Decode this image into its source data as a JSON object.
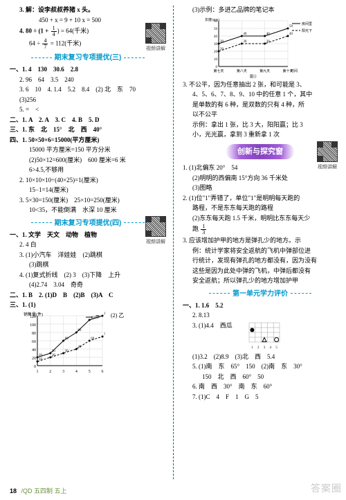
{
  "footer": {
    "page": "18",
    "label": "/QD 五四制 五上"
  },
  "watermark": "答案圈",
  "qr_label": "视频讲解",
  "colors": {
    "title": "#0099cc",
    "banner_bg": "#8a4bc2",
    "divider": "#0a6b6b",
    "chart_axis": "#000000",
    "chart_grid": "#888888",
    "series_a": "#000000",
    "series_b": "#000000",
    "footer_label": "#6b8f3a"
  },
  "left": {
    "p3": {
      "l1": "3. 解：设李叔叔养猪 x 头。",
      "l2": "450 + x = 9 + 10    x = 500",
      "l3a": "4. 80 ÷ (1 + ",
      "l3b": ") = 64(千米)",
      "frac1": {
        "n": "1",
        "d": "4"
      },
      "l4a": "64 ÷ ",
      "l4b": " = 112(千米)",
      "frac2": {
        "n": "4",
        "d": "7"
      }
    },
    "s3_title": "期末复习专项提优(三)",
    "s3": {
      "h1": "一、1. 4　130　30.6　2.8",
      "l2": "2. 96　64　3.5　240",
      "l3": "3. 6　10　4. 1.4　5.2　8.4　(2) 北　东　70",
      "l4": "(3)256",
      "l5": "5. =　<",
      "h2": "二、1. A　2. A　3. C　4. B　5. D",
      "h3": "三、1. 东　北　15°　北　西　40°",
      "h4": "四、1. 50×50×6=15000(平方厘米)",
      "l6": "15000 平方厘米=150 平方分米",
      "l7": "(2)50×12=600(厘米)　600 厘米=6 米",
      "l8": "6>4.5,不够用",
      "l9": "2. 10×10×10÷(40×25)=1(厘米)",
      "l10": "15−1=14(厘米)",
      "l11": "3. 5×30=150(厘米)　25×10=250(厘米)",
      "l12": "10<35，不能倒满　水深 10 厘米"
    },
    "s4_title": "期末复习专项提优(四)",
    "s4": {
      "h1": "一、1. 文学　天文　动物　植物",
      "l2": "2. 4 白",
      "l3": "3. (1)小汽车　洋娃娃　(2)跳棋",
      "l4": "(3)跳棋",
      "l5": "4. (1)复式折线　(2) 3　(3)下降　上升",
      "l6": "(4)2.74　3.04　奇奇",
      "h2": "二、1. B　2. (1)D　B　(2)B　(3)A　C",
      "h3": "三、1. (1)",
      "chart_legend": "(2) 乙",
      "chart": {
        "ylabel": "销售量(件)",
        "series_label": "甲",
        "x": [
          1,
          2,
          3,
          4,
          5,
          6
        ],
        "y_top": [
          20,
          30,
          60,
          80,
          110,
          120
        ],
        "y_bot": [
          10,
          20,
          30,
          40,
          60,
          70
        ],
        "ylim": [
          0,
          120
        ],
        "ytick": 20,
        "width": 120,
        "height": 90,
        "axis_color": "#000",
        "grid_color": "#bbb",
        "line_color": "#000"
      }
    }
  },
  "right": {
    "top": {
      "l1": "(3)示例：多进乙品牌的笔记本",
      "chart": {
        "ylabel": "长度(mm)",
        "legend_a": "房间里",
        "legend_b": "阳光下",
        "xlabels": [
          "第七天",
          "第八天",
          "第九天",
          "第十天"
        ],
        "xlabel_extra": "时间",
        "xlabel_extra2": "图②",
        "series_a": [
          30,
          40,
          40,
          50
        ],
        "series_b": [
          20,
          30,
          30,
          40
        ],
        "ylim": [
          0,
          60
        ],
        "ytick": 10,
        "width": 140,
        "height": 80,
        "axis_color": "#000",
        "grid_color": "#bbb"
      },
      "l2": "3. 不公平，因为任意抽出 2 张，和可能是 3、",
      "l3": "4、5、6、7、8、9、10 中的任意 1 个，其中",
      "l4": "是单数的有 6 种，是双数的只有 4 种，所",
      "l5": "以不公平",
      "l6": "示例：拿出 1 张，比 3 大，阳阳赢；比 3",
      "l7": "小，光光赢，拿到 3 重新拿 1 次"
    },
    "banner": "创新与探究窗",
    "mid": {
      "l1": "1. (1)北偏东 20°　54",
      "l2": "(2)明明的西偏南 15°方向 36 千米处",
      "l3": "(3)图略",
      "l4": "2. (1)位\"1\"弄错了，单位\"1\"是明明每天跑的",
      "l5": "路程，不是东东每天跑的路程",
      "l6": "(2)东东每天跑 1.5 千米，明明比东东每天少",
      "l7a": "跑 ",
      "frac": {
        "n": "1",
        "d": "3"
      },
      "l8": "3. 应该增加护甲的地方是弹孔少的地方。示",
      "l9": "例：统计学家将安全返航的飞机中弹部位进",
      "l10": "行统计，发现有弹孔的地方都没有，因为没有",
      "l11": "这些是因为此处中弹的飞机，中弹后都没有",
      "l12": "安全返航；所以弹孔少的地方增加护甲"
    },
    "s1_title": "第一单元学力评价",
    "s1": {
      "h1": "一、1. 1.6　5.2",
      "l2": "2. 8.13",
      "l3a": "3. (1)4.4　西瓜",
      "chart2": {
        "width": 52,
        "height": 40,
        "rows": 4,
        "cols": 5,
        "shapes": [
          {
            "type": "circle",
            "r": 2,
            "c": 1
          },
          {
            "type": "circle_open",
            "r": 4,
            "c": 5
          },
          {
            "type": "triangle",
            "r": 4,
            "c": 3
          }
        ]
      },
      "l4": "(1)3.2　(2)8.9　(3)北　西　5.4",
      "l5": "5. (1)南　东　65°　150　(2)南　东　30°",
      "l6": "150　北　西　60°　50",
      "l7": "6. 南　西　30°　南　东　60°",
      "l8": "7. (1)C　4　F　1　G　5"
    }
  }
}
